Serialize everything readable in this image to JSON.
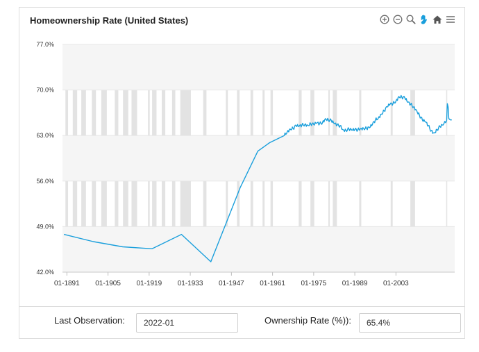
{
  "chart_data": {
    "type": "line",
    "title": "Homeownership Rate (United States)",
    "xlabel": "",
    "ylabel": "",
    "ylim": [
      42,
      77
    ],
    "xlim": [
      1889.5,
      2023
    ],
    "y_ticks": [
      "77.0%",
      "70.0%",
      "63.0%",
      "56.0%",
      "49.0%",
      "42.0%"
    ],
    "y_tick_values": [
      77,
      70,
      63,
      56,
      49,
      42
    ],
    "x_ticks": [
      "01-1891",
      "01-1905",
      "01-1919",
      "01-1933",
      "01-1947",
      "01-1961",
      "01-1975",
      "01-1989",
      "01-2003"
    ],
    "x_tick_values": [
      1891,
      1905,
      1919,
      1933,
      1947,
      1961,
      1975,
      1989,
      2003
    ],
    "grid": true,
    "recession_shading": true,
    "recessions": [
      [
        1890.5,
        1891.4
      ],
      [
        1893.0,
        1894.5
      ],
      [
        1895.9,
        1897.5
      ],
      [
        1899.5,
        1900.9
      ],
      [
        1902.7,
        1904.6
      ],
      [
        1907.3,
        1908.5
      ],
      [
        1910.1,
        1911.9
      ],
      [
        1913.0,
        1914.9
      ],
      [
        1918.6,
        1919.2
      ],
      [
        1920.0,
        1921.5
      ],
      [
        1923.3,
        1924.5
      ],
      [
        1926.8,
        1927.9
      ],
      [
        1929.6,
        1933.2
      ],
      [
        1937.4,
        1938.5
      ],
      [
        1945.1,
        1945.8
      ],
      [
        1948.9,
        1949.8
      ],
      [
        1953.5,
        1954.4
      ],
      [
        1957.6,
        1958.3
      ],
      [
        1960.3,
        1961.1
      ],
      [
        1969.9,
        1970.9
      ],
      [
        1973.9,
        1975.2
      ],
      [
        1980.0,
        1980.5
      ],
      [
        1981.5,
        1982.9
      ],
      [
        1990.5,
        1991.2
      ],
      [
        2001.2,
        2001.9
      ],
      [
        2007.9,
        2009.5
      ],
      [
        2020.1,
        2020.4
      ]
    ],
    "series": [
      {
        "color": "#1a9fdc",
        "points": [
          [
            1890,
            47.8
          ],
          [
            1900,
            46.7
          ],
          [
            1910,
            45.9
          ],
          [
            1920,
            45.6
          ],
          [
            1930,
            47.8
          ],
          [
            1940,
            43.6
          ],
          [
            1950,
            55.0
          ],
          [
            1956,
            60.6
          ],
          [
            1960,
            61.9
          ],
          [
            1965,
            63.0
          ],
          [
            1966,
            63.6
          ],
          [
            1967,
            64.0
          ],
          [
            1968,
            64.1
          ],
          [
            1969,
            64.5
          ],
          [
            1970,
            64.4
          ],
          [
            1971,
            64.6
          ],
          [
            1972,
            64.7
          ],
          [
            1973,
            64.6
          ],
          [
            1974,
            64.8
          ],
          [
            1975,
            64.7
          ],
          [
            1976,
            64.9
          ],
          [
            1977,
            64.8
          ],
          [
            1978,
            65.0
          ],
          [
            1979,
            65.6
          ],
          [
            1980,
            65.4
          ],
          [
            1981,
            65.3
          ],
          [
            1982,
            64.8
          ],
          [
            1983,
            64.6
          ],
          [
            1984,
            64.5
          ],
          [
            1985,
            63.9
          ],
          [
            1986,
            63.8
          ],
          [
            1987,
            64.0
          ],
          [
            1988,
            63.8
          ],
          [
            1989,
            63.9
          ],
          [
            1990,
            63.9
          ],
          [
            1991,
            64.1
          ],
          [
            1992,
            64.1
          ],
          [
            1993,
            64.1
          ],
          [
            1994,
            64.2
          ],
          [
            1995,
            64.7
          ],
          [
            1996,
            65.4
          ],
          [
            1997,
            65.7
          ],
          [
            1998,
            66.3
          ],
          [
            1999,
            66.8
          ],
          [
            2000,
            67.4
          ],
          [
            2001,
            67.8
          ],
          [
            2002,
            67.9
          ],
          [
            2003,
            68.3
          ],
          [
            2004,
            69.0
          ],
          [
            2005,
            68.9
          ],
          [
            2006,
            68.8
          ],
          [
            2007,
            68.1
          ],
          [
            2008,
            67.8
          ],
          [
            2009,
            67.4
          ],
          [
            2010,
            66.9
          ],
          [
            2011,
            66.1
          ],
          [
            2012,
            65.4
          ],
          [
            2013,
            65.1
          ],
          [
            2014,
            64.5
          ],
          [
            2015,
            63.7
          ],
          [
            2016,
            63.4
          ],
          [
            2017,
            63.9
          ],
          [
            2018,
            64.4
          ],
          [
            2019,
            64.6
          ],
          [
            2020.25,
            65.3
          ],
          [
            2020.5,
            67.9
          ],
          [
            2020.75,
            67.4
          ],
          [
            2021,
            65.6
          ],
          [
            2021.5,
            65.4
          ],
          [
            2022,
            65.4
          ]
        ]
      }
    ]
  },
  "footer": {
    "last_observation_label": "Last Observation:",
    "last_observation_value": "2022-01",
    "rate_label": "Ownership Rate (%)):",
    "rate_value": "65.4%"
  },
  "toolbar": {
    "icons": [
      "zoom-in-icon",
      "zoom-out-icon",
      "zoom-select-icon",
      "pan-hand-icon",
      "home-reset-icon",
      "menu-icon"
    ],
    "accent": "#1a9fdc"
  }
}
